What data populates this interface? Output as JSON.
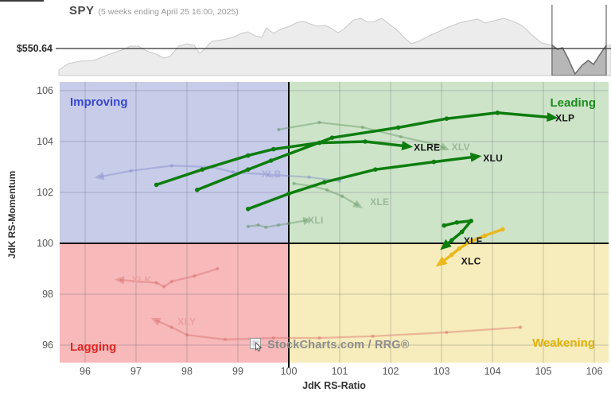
{
  "header": {
    "symbol": "SPY",
    "subtitle": "(5 weeks ending April 25 16:00, 2025)",
    "price_label": "$550.64"
  },
  "watermark": {
    "text": "StockCharts.com / RRG®"
  },
  "chart_data": [
    {
      "type": "area",
      "title": "SPY price with 5-week highlight window",
      "reference_price": 550.64,
      "reference_price_label": "$550.64",
      "highlight_window": {
        "start_f": 0.901,
        "end_f": 1.0
      },
      "points": [
        [
          0,
          523.6
        ],
        [
          0.017,
          531.6
        ],
        [
          0.038,
          534.6
        ],
        [
          0.064,
          535.6
        ],
        [
          0.093,
          543.6
        ],
        [
          0.119,
          549.6
        ],
        [
          0.131,
          553.6
        ],
        [
          0.145,
          553.6
        ],
        [
          0.16,
          547.6
        ],
        [
          0.177,
          543.6
        ],
        [
          0.192,
          538.6
        ],
        [
          0.203,
          540.6
        ],
        [
          0.219,
          553.6
        ],
        [
          0.234,
          556.6
        ],
        [
          0.247,
          554.6
        ],
        [
          0.257,
          544.6
        ],
        [
          0.269,
          551.6
        ],
        [
          0.279,
          559.6
        ],
        [
          0.299,
          561.6
        ],
        [
          0.318,
          564.6
        ],
        [
          0.333,
          569.6
        ],
        [
          0.346,
          571.6
        ],
        [
          0.358,
          566.6
        ],
        [
          0.371,
          564.6
        ],
        [
          0.379,
          576.6
        ],
        [
          0.392,
          569.6
        ],
        [
          0.404,
          574.6
        ],
        [
          0.422,
          578.6
        ],
        [
          0.436,
          583.6
        ],
        [
          0.448,
          584.6
        ],
        [
          0.459,
          581.6
        ],
        [
          0.472,
          578.6
        ],
        [
          0.487,
          579.6
        ],
        [
          0.496,
          576.6
        ],
        [
          0.51,
          570.6
        ],
        [
          0.52,
          574.6
        ],
        [
          0.539,
          586.6
        ],
        [
          0.552,
          588.6
        ],
        [
          0.564,
          583.6
        ],
        [
          0.576,
          584.6
        ],
        [
          0.59,
          588.6
        ],
        [
          0.605,
          580.6
        ],
        [
          0.618,
          573.6
        ],
        [
          0.632,
          563.6
        ],
        [
          0.644,
          556.6
        ],
        [
          0.657,
          559.6
        ],
        [
          0.674,
          565.6
        ],
        [
          0.693,
          571.6
        ],
        [
          0.712,
          577.6
        ],
        [
          0.731,
          582.6
        ],
        [
          0.749,
          585.6
        ],
        [
          0.765,
          587.6
        ],
        [
          0.779,
          582.6
        ],
        [
          0.795,
          585.6
        ],
        [
          0.813,
          588.6
        ],
        [
          0.83,
          584.6
        ],
        [
          0.846,
          579.6
        ],
        [
          0.863,
          568.6
        ],
        [
          0.882,
          557.6
        ],
        [
          0.901,
          554.6
        ],
        [
          0.911,
          549.6
        ],
        [
          0.92,
          551.6
        ],
        [
          0.93,
          538.6
        ],
        [
          0.943,
          518.6
        ],
        [
          0.956,
          529.6
        ],
        [
          0.967,
          535.6
        ],
        [
          0.977,
          530.6
        ],
        [
          0.987,
          541.6
        ],
        [
          1,
          554.6
        ]
      ]
    },
    {
      "type": "line",
      "subtype": "relative-rotation-graph",
      "xlabel": "JdK RS-Ratio",
      "ylabel": "JdK RS-Momentum",
      "xlim": [
        95.5,
        106.3
      ],
      "ylim": [
        95.3,
        106.4
      ],
      "center": [
        100,
        100
      ],
      "x_ticks": [
        96,
        97,
        98,
        99,
        100,
        101,
        102,
        103,
        104,
        105,
        106
      ],
      "y_ticks": [
        96,
        98,
        100,
        102,
        104,
        106
      ],
      "quadrants": {
        "improving": {
          "label": "Improving",
          "bg": "#c7cce9",
          "label_color": "#3b48cc"
        },
        "leading": {
          "label": "Leading",
          "bg": "#cde4c9",
          "label_color": "#1d8a1d"
        },
        "lagging": {
          "label": "Lagging",
          "bg": "#f7b9b9",
          "label_color": "#e02626"
        },
        "weakening": {
          "label": "Weakening",
          "bg": "#f7ecbb",
          "label_color": "#e0b10a"
        }
      },
      "series": [
        {
          "name": "XLB",
          "style": "faded",
          "color": "#7f89c8",
          "label_color": "#a7aede",
          "label_at": [
            99.45,
            102.72
          ],
          "points": [
            [
              101.0,
              102.45
            ],
            [
              100.4,
              102.6
            ],
            [
              99.6,
              102.7
            ],
            [
              98.9,
              102.8
            ],
            [
              98.5,
              103.0
            ],
            [
              97.7,
              103.05
            ],
            [
              96.9,
              102.85
            ],
            [
              96.3,
              102.62
            ]
          ]
        },
        {
          "name": "XLI",
          "style": "faded",
          "color": "#5f915f",
          "label_color": "#9bb89b",
          "label_at": [
            100.36,
            100.9
          ],
          "points": [
            [
              99.2,
              100.66
            ],
            [
              99.4,
              100.72
            ],
            [
              99.55,
              100.63
            ],
            [
              99.8,
              100.72
            ],
            [
              100.0,
              100.78
            ],
            [
              100.35,
              100.9
            ]
          ]
        },
        {
          "name": "XLE",
          "style": "faded",
          "color": "#5f915f",
          "label_color": "#9bb89b",
          "label_at": [
            101.58,
            101.62
          ],
          "points": [
            [
              100.1,
              102.35
            ],
            [
              100.45,
              102.25
            ],
            [
              100.75,
              102.1
            ],
            [
              101.05,
              101.85
            ],
            [
              101.35,
              101.5
            ]
          ]
        },
        {
          "name": "XLV",
          "style": "faded",
          "color": "#5f915f",
          "label_color": "#9bb89b",
          "label_at": [
            103.18,
            103.78
          ],
          "points": [
            [
              99.8,
              104.47
            ],
            [
              100.6,
              104.75
            ],
            [
              101.45,
              104.56
            ],
            [
              102.2,
              104.19
            ],
            [
              102.9,
              103.88
            ],
            [
              103.05,
              103.75
            ]
          ]
        },
        {
          "name": "XLK",
          "style": "faded",
          "color": "#d96a6a",
          "label_color": "#eba0a0",
          "label_at": [
            96.9,
            98.57
          ],
          "points": [
            [
              98.6,
              99.0
            ],
            [
              98.15,
              98.72
            ],
            [
              97.7,
              98.5
            ],
            [
              97.55,
              98.3
            ],
            [
              97.4,
              98.45
            ],
            [
              96.7,
              98.56
            ]
          ]
        },
        {
          "name": "XLY",
          "style": "faded",
          "color": "#d96a6a",
          "label_color": "#eba0a0",
          "label_at": [
            97.8,
            96.92
          ],
          "points": [
            [
              104.55,
              96.7
            ],
            [
              103.1,
              96.5
            ],
            [
              101.65,
              96.35
            ],
            [
              100.6,
              96.28
            ],
            [
              99.7,
              96.28
            ],
            [
              98.75,
              96.22
            ],
            [
              98.0,
              96.4
            ],
            [
              97.7,
              96.7
            ],
            [
              97.4,
              96.97
            ]
          ]
        },
        {
          "name": "XLRE",
          "style": "bold",
          "color": "#0d7d0d",
          "label_color": "#161616",
          "label_at": [
            102.44,
            103.77
          ],
          "points": [
            [
              97.4,
              102.3
            ],
            [
              98.3,
              102.9
            ],
            [
              99.2,
              103.45
            ],
            [
              99.7,
              103.7
            ],
            [
              100.6,
              103.95
            ],
            [
              101.5,
              104.0
            ],
            [
              102.3,
              103.82
            ]
          ]
        },
        {
          "name": "XLP",
          "style": "bold",
          "color": "#0d7d0d",
          "label_color": "#161616",
          "label_at": [
            105.22,
            104.92
          ],
          "points": [
            [
              98.2,
              102.1
            ],
            [
              99.2,
              102.9
            ],
            [
              99.65,
              103.25
            ],
            [
              100.85,
              104.15
            ],
            [
              102.15,
              104.55
            ],
            [
              103.1,
              104.9
            ],
            [
              104.1,
              105.13
            ],
            [
              105.15,
              104.95
            ]
          ]
        },
        {
          "name": "XLU",
          "style": "bold",
          "color": "#0d7d0d",
          "label_color": "#161616",
          "label_at": [
            103.8,
            103.35
          ],
          "points": [
            [
              99.2,
              101.35
            ],
            [
              100.0,
              101.95
            ],
            [
              100.7,
              102.4
            ],
            [
              101.7,
              102.9
            ],
            [
              102.85,
              103.2
            ],
            [
              103.65,
              103.4
            ]
          ]
        },
        {
          "name": "XLF",
          "style": "bold",
          "color": "#0d7d0d",
          "label_color": "#161616",
          "label_at": [
            103.42,
            100.1
          ],
          "points": [
            [
              103.05,
              100.7
            ],
            [
              103.3,
              100.82
            ],
            [
              103.58,
              100.88
            ],
            [
              103.4,
              100.45
            ],
            [
              103.2,
              100.12
            ],
            [
              103.08,
              99.92
            ]
          ]
        },
        {
          "name": "XLC",
          "style": "bold",
          "color": "#e9b91f",
          "label_color": "#161616",
          "label_at": [
            103.37,
            99.3
          ],
          "points": [
            [
              104.2,
              100.55
            ],
            [
              103.85,
              100.3
            ],
            [
              103.6,
              100.1
            ],
            [
              103.35,
              99.8
            ],
            [
              103.2,
              99.55
            ],
            [
              103.0,
              99.25
            ]
          ]
        }
      ]
    }
  ]
}
